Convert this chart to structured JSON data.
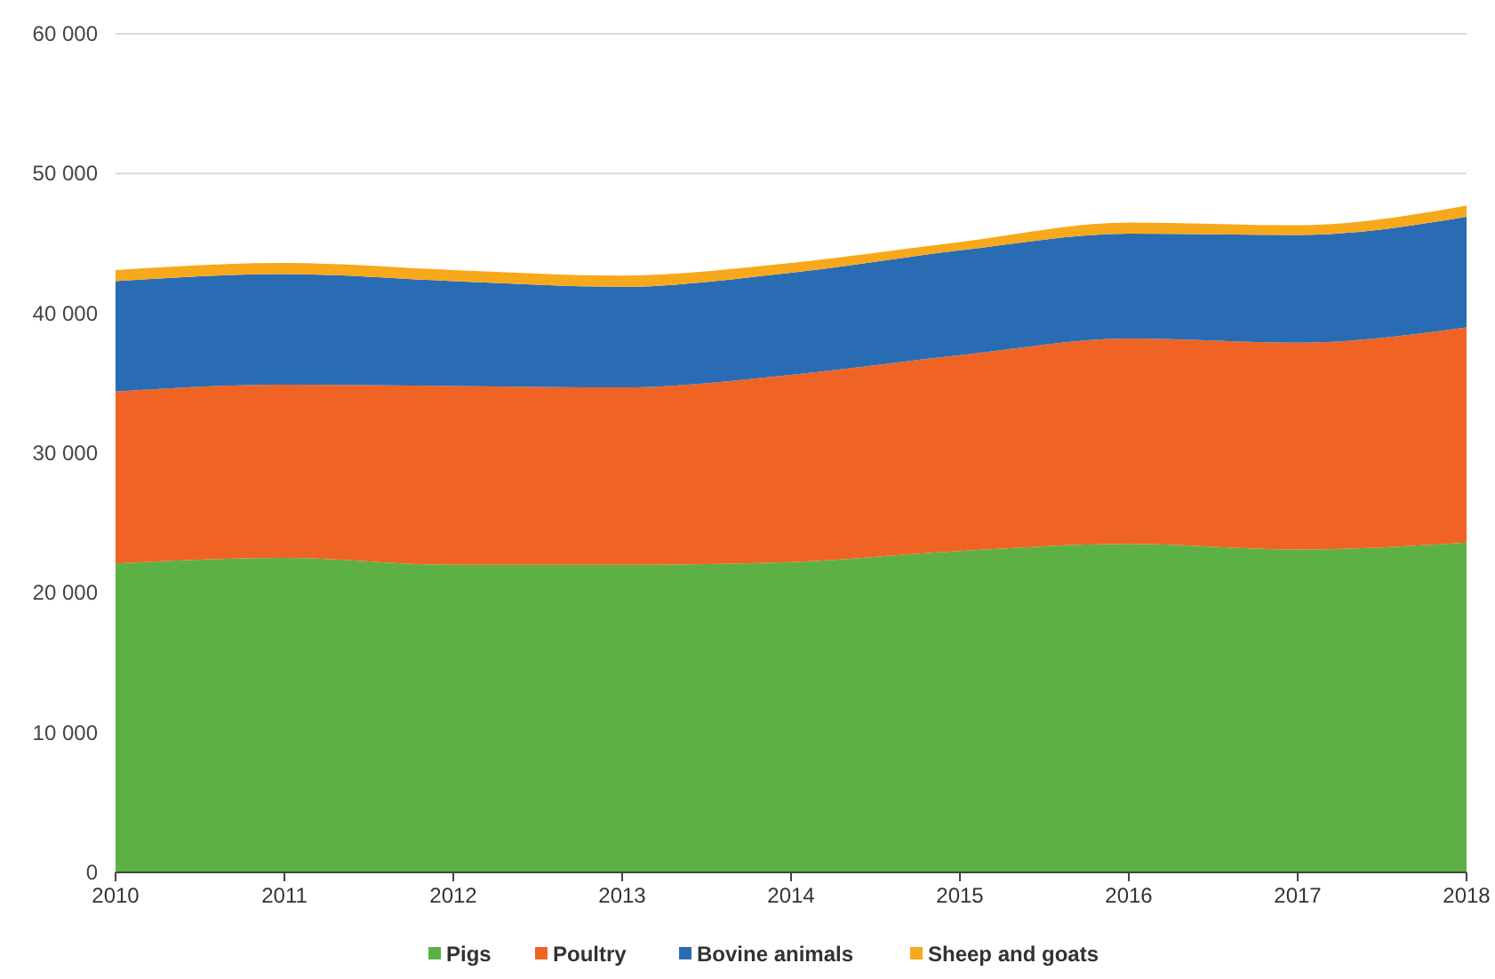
{
  "chart_data": {
    "type": "area",
    "stacked": true,
    "x": [
      2010,
      2011,
      2012,
      2013,
      2014,
      2015,
      2016,
      2017,
      2018
    ],
    "xlim": [
      2010,
      2018
    ],
    "xticks": [
      2010,
      2011,
      2012,
      2013,
      2014,
      2015,
      2016,
      2017,
      2018
    ],
    "ylim": [
      0,
      60000
    ],
    "yticks": [
      {
        "value": 0,
        "label": "0"
      },
      {
        "value": 10000,
        "label": "10 000"
      },
      {
        "value": 20000,
        "label": "20 000"
      },
      {
        "value": 30000,
        "label": "30 000"
      },
      {
        "value": 40000,
        "label": "40 000"
      },
      {
        "value": 50000,
        "label": "50 000"
      },
      {
        "value": 60000,
        "label": "60 000"
      }
    ],
    "grid": "y",
    "legend": "bottom",
    "series": [
      {
        "name": "Pigs",
        "color": "#5db144",
        "values": [
          22100,
          22500,
          22000,
          22000,
          22200,
          23000,
          23500,
          23100,
          23600
        ]
      },
      {
        "name": "Poultry",
        "color": "#ef6424",
        "values": [
          12300,
          12400,
          12800,
          12700,
          13400,
          14000,
          14700,
          14800,
          15400
        ]
      },
      {
        "name": "Bovine animals",
        "color": "#2a6cb3",
        "values": [
          7900,
          7900,
          7500,
          7200,
          7300,
          7500,
          7500,
          7700,
          7900
        ]
      },
      {
        "name": "Sheep and goats",
        "color": "#f7a81b",
        "values": [
          800,
          800,
          800,
          800,
          700,
          600,
          800,
          700,
          800
        ]
      }
    ]
  }
}
